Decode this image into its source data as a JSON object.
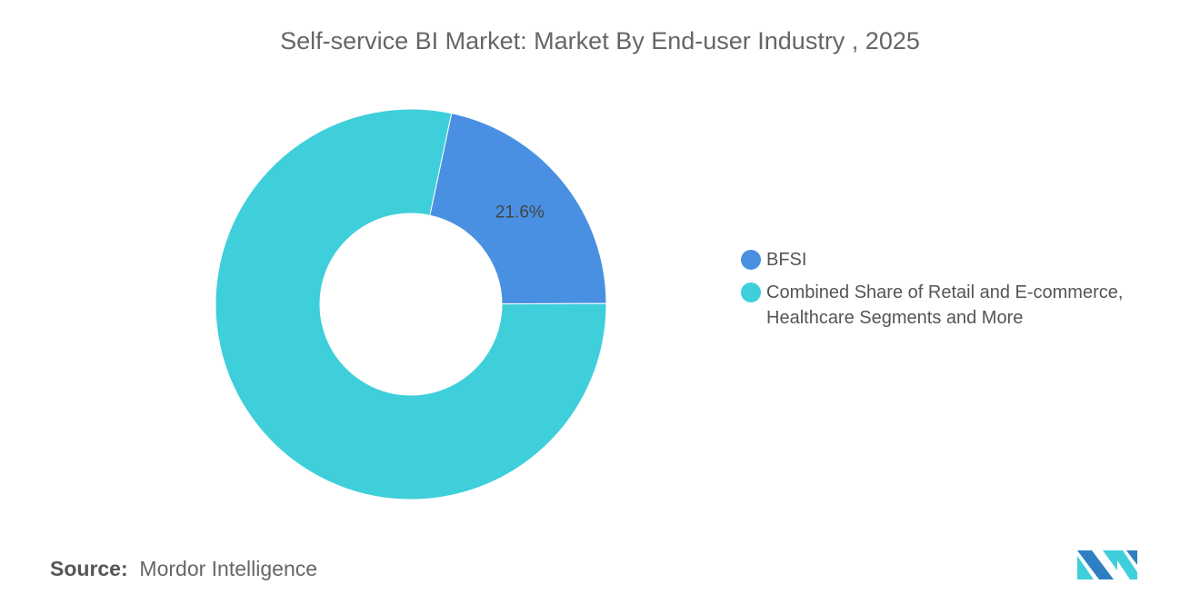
{
  "chart_data": {
    "type": "pie",
    "title": "Self-service BI Market: Market By End-user Industry , 2025",
    "donut": true,
    "slices": [
      {
        "label": "BFSI",
        "value": 21.6,
        "color": "#4a90e2",
        "data_label": "21.6%"
      },
      {
        "label": "Combined Share of Retail and E-commerce, Healthcare Segments and More",
        "value": 78.4,
        "color": "#3ecfda"
      }
    ],
    "legend_placement": "right"
  },
  "legend": {
    "items": [
      {
        "line1": "BFSI",
        "line2": ""
      },
      {
        "line1": "Combined Share of Retail and E-commerce,",
        "line2": "Healthcare Segments and More"
      }
    ]
  },
  "source": {
    "label": "Source:",
    "value": "Mordor Intelligence"
  },
  "logo": {
    "name": "Mordor Intelligence logo",
    "colors": [
      "#2e7fc1",
      "#3ecfda"
    ]
  }
}
